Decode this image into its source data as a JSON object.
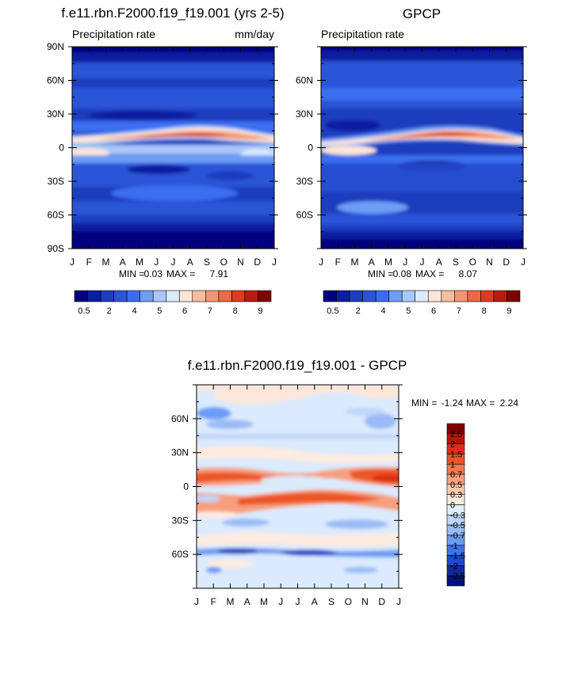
{
  "figure": {
    "description_panel_count": 3
  },
  "chart_data": [
    {
      "type": "heatmap",
      "title": "f.e11.rbn.F2000.f19_f19.001 (yrs 2-5)",
      "subtitle_left": "Precipitation rate",
      "subtitle_right": "mm/day",
      "x_ticks": [
        "J",
        "F",
        "M",
        "A",
        "M",
        "J",
        "J",
        "A",
        "S",
        "O",
        "N",
        "D",
        "J"
      ],
      "y_ticks": [
        "90N",
        "60N",
        "30N",
        "0",
        "30S",
        "60S",
        "90S"
      ],
      "ylim": [
        -90,
        90
      ],
      "min_label": "MIN =",
      "min_value": "0.03",
      "max_label": "MAX =",
      "max_value": "7.91",
      "colorbar": {
        "orientation": "horizontal",
        "labels": [
          "0.5",
          "2",
          "4",
          "5",
          "6",
          "7",
          "8",
          "9"
        ]
      }
    },
    {
      "type": "heatmap",
      "title": "GPCP",
      "subtitle_left": "Precipitation rate",
      "x_ticks": [
        "J",
        "F",
        "M",
        "A",
        "M",
        "J",
        "J",
        "A",
        "S",
        "O",
        "N",
        "D",
        "J"
      ],
      "y_ticks": [
        "60N",
        "30N",
        "0",
        "30S",
        "60S"
      ],
      "ylim": [
        -90,
        90
      ],
      "min_label": "MIN =",
      "min_value": "0.08",
      "max_label": "MAX =",
      "max_value": "8.07",
      "colorbar": {
        "orientation": "horizontal",
        "labels": [
          "0.5",
          "2",
          "4",
          "5",
          "6",
          "7",
          "8",
          "9"
        ]
      }
    },
    {
      "type": "heatmap",
      "title": "f.e11.rbn.F2000.f19_f19.001 - GPCP",
      "x_ticks": [
        "J",
        "F",
        "M",
        "A",
        "M",
        "J",
        "J",
        "A",
        "S",
        "O",
        "N",
        "D",
        "J"
      ],
      "y_ticks": [
        "60N",
        "30N",
        "0",
        "30S",
        "60S"
      ],
      "ylim": [
        -90,
        90
      ],
      "min_label": "MIN =",
      "min_value": "-1.24",
      "max_label": "MAX =",
      "max_value": "2.24",
      "colorbar": {
        "orientation": "vertical",
        "labels": [
          "2.5",
          "2",
          "1.5",
          "1",
          "0.7",
          "0.5",
          "0.3",
          "0",
          "-0.3",
          "-0.5",
          "-0.7",
          "-1",
          "-1.5",
          "-2",
          "-2.5"
        ]
      }
    }
  ],
  "colors": {
    "precip_scale": [
      "#00007f",
      "#0a1ea0",
      "#1c3cbe",
      "#2a55d6",
      "#3a6ef0",
      "#6d9df7",
      "#a8c8fa",
      "#dbeafd",
      "#fde6d8",
      "#f8bca0",
      "#f49572",
      "#ec6a45",
      "#dc3d1e",
      "#b81c0c",
      "#7f0000"
    ],
    "diff_scale": [
      "#7f0000",
      "#b51509",
      "#d93016",
      "#ec5427",
      "#f37850",
      "#f79f7d",
      "#fbcab0",
      "#fdebdf",
      "#e2eefd",
      "#bfd6fa",
      "#99bbf5",
      "#6d9bef",
      "#3f72e6",
      "#1f4bc8",
      "#0f2a9a",
      "#00107a"
    ]
  }
}
